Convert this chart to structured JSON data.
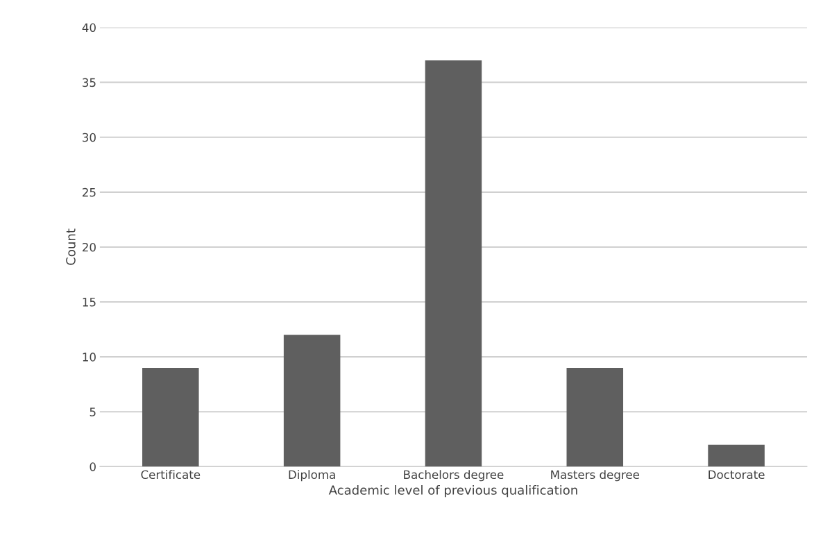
{
  "chart_data": {
    "type": "bar",
    "categories": [
      "Certificate",
      "Diploma",
      "Bachelors degree",
      "Masters degree",
      "Doctorate"
    ],
    "values": [
      9,
      12,
      37,
      9,
      2
    ],
    "color": "#5f5f5f",
    "xlabel": "Academic level of previous qualification",
    "ylabel": "Count",
    "ylim": [
      0,
      40
    ],
    "yticks": [
      0,
      5,
      10,
      15,
      20,
      25,
      30,
      35,
      40
    ],
    "grid": "y"
  }
}
